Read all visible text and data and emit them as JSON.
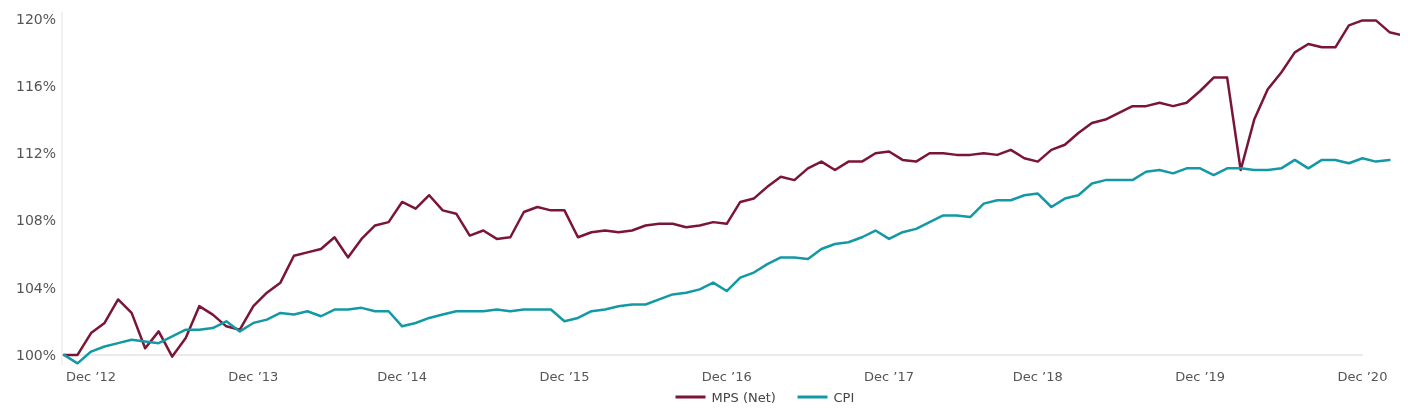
{
  "chart_data": {
    "type": "line",
    "categories": [
      null,
      null,
      "Dec ’12",
      null,
      null,
      null,
      null,
      null,
      null,
      null,
      null,
      null,
      null,
      null,
      "Dec ’13",
      null,
      null,
      null,
      null,
      null,
      null,
      null,
      null,
      null,
      null,
      "Dec ’14",
      null,
      null,
      null,
      null,
      null,
      null,
      null,
      null,
      null,
      null,
      null,
      "Dec ’15",
      null,
      null,
      null,
      null,
      null,
      null,
      null,
      null,
      null,
      null,
      null,
      "Dec ’16",
      null,
      null,
      null,
      null,
      null,
      null,
      null,
      null,
      null,
      null,
      null,
      "Dec ’17",
      null,
      null,
      null,
      null,
      null,
      null,
      null,
      null,
      null,
      null,
      "Dec ’18",
      null,
      null,
      null,
      null,
      null,
      null,
      null,
      null,
      null,
      null,
      null,
      "Dec ’19",
      null,
      null,
      null,
      null,
      null,
      null,
      null,
      null,
      null,
      null,
      null,
      "Dec ’20",
      null,
      null,
      null
    ],
    "series": [
      {
        "name": "MPS (Net)",
        "color": "#7b1535",
        "values": [
          100,
          100,
          101.3,
          101.9,
          103.3,
          102.5,
          100.4,
          101.4,
          99.9,
          101.0,
          102.9,
          102.4,
          101.7,
          101.5,
          102.9,
          103.7,
          104.3,
          105.9,
          106.1,
          106.3,
          107.0,
          105.8,
          106.9,
          107.7,
          107.9,
          109.1,
          108.7,
          109.5,
          108.6,
          108.4,
          107.1,
          107.4,
          106.9,
          107.0,
          108.5,
          108.8,
          108.6,
          108.6,
          107.0,
          107.3,
          107.4,
          107.3,
          107.4,
          107.7,
          107.8,
          107.8,
          107.6,
          107.7,
          107.9,
          107.8,
          109.1,
          109.3,
          110.0,
          110.6,
          110.4,
          111.1,
          111.5,
          111.0,
          111.5,
          111.5,
          112.0,
          112.1,
          111.6,
          111.5,
          112.0,
          112.0,
          111.9,
          111.9,
          112.0,
          111.9,
          112.2,
          111.7,
          111.5,
          112.2,
          112.5,
          113.2,
          113.8,
          114.0,
          114.4,
          114.8,
          114.8,
          115.0,
          114.8,
          115.0,
          115.7,
          116.5,
          116.5,
          111.0,
          114.0,
          115.8,
          116.8,
          118.0,
          118.5,
          118.3,
          118.3,
          119.6,
          119.9,
          119.9,
          119.2,
          119.0
        ]
      },
      {
        "name": "CPI",
        "color": "#1399a4",
        "values": [
          100,
          99.5,
          100.2,
          100.5,
          100.7,
          100.9,
          100.8,
          100.7,
          101.1,
          101.5,
          101.5,
          101.6,
          102.0,
          101.4,
          101.9,
          102.1,
          102.5,
          102.4,
          102.6,
          102.3,
          102.7,
          102.7,
          102.8,
          102.6,
          102.6,
          101.7,
          101.9,
          102.2,
          102.4,
          102.6,
          102.6,
          102.6,
          102.7,
          102.6,
          102.7,
          102.7,
          102.7,
          102.0,
          102.2,
          102.6,
          102.7,
          102.9,
          103.0,
          103.0,
          103.3,
          103.6,
          103.7,
          103.9,
          104.3,
          103.8,
          104.6,
          104.9,
          105.4,
          105.8,
          105.8,
          105.7,
          106.3,
          106.6,
          106.7,
          107.0,
          107.4,
          106.9,
          107.3,
          107.5,
          107.9,
          108.3,
          108.3,
          108.2,
          109.0,
          109.2,
          109.2,
          109.5,
          109.6,
          108.8,
          109.3,
          109.5,
          110.2,
          110.4,
          110.4,
          110.4,
          110.9,
          111.0,
          110.8,
          111.1,
          111.1,
          110.7,
          111.1,
          111.1,
          111.0,
          111.0,
          111.1,
          111.6,
          111.1,
          111.6,
          111.6,
          111.4,
          111.7,
          111.5,
          111.6,
          null
        ]
      }
    ],
    "ylim": [
      99.4,
      120.4
    ],
    "yticks": [
      {
        "value": 100,
        "label": "100%"
      },
      {
        "value": 104,
        "label": "104%"
      },
      {
        "value": 108,
        "label": "108%"
      },
      {
        "value": 112,
        "label": "112%"
      },
      {
        "value": 116,
        "label": "116%"
      },
      {
        "value": 120,
        "label": "120%"
      }
    ],
    "grid": false,
    "legend": "bottom",
    "marker": "none",
    "line_style": "solid"
  }
}
